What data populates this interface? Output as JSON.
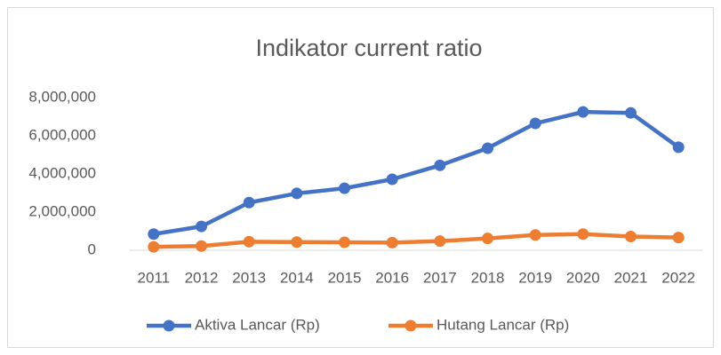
{
  "chart_data": {
    "type": "line",
    "title": "Indikator current ratio",
    "categories": [
      "2011",
      "2012",
      "2013",
      "2014",
      "2015",
      "2016",
      "2017",
      "2018",
      "2019",
      "2020",
      "2021",
      "2022"
    ],
    "series": [
      {
        "name": "Aktiva Lancar (Rp)",
        "color": "#4472c4",
        "values": [
          850000,
          1250000,
          2500000,
          2980000,
          3250000,
          3720000,
          4450000,
          5350000,
          6650000,
          7250000,
          7200000,
          5400000
        ]
      },
      {
        "name": "Hutang Lancar (Rp)",
        "color": "#ed7d31",
        "values": [
          180000,
          220000,
          450000,
          430000,
          420000,
          400000,
          480000,
          620000,
          800000,
          850000,
          720000,
          670000
        ]
      }
    ],
    "ylim": [
      0,
      8000000
    ],
    "yticks": [
      0,
      {
        "value": 2000000,
        "label": "2,000,000"
      },
      {
        "value": 4000000,
        "label": "4,000,000"
      },
      {
        "value": 6000000,
        "label": "6,000,000"
      },
      {
        "value": 8000000,
        "label": "8,000,000"
      }
    ],
    "grid": false,
    "legend": "bottom"
  }
}
